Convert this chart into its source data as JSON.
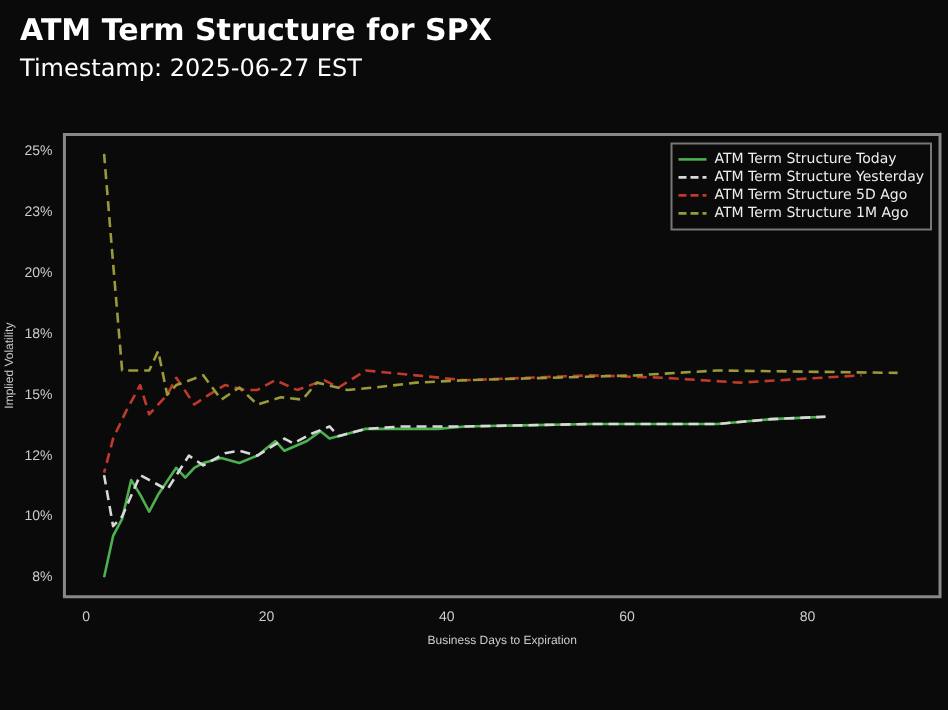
{
  "chart_data": {
    "type": "line",
    "title": "ATM Term Structure for SPX",
    "subtitle": "Timestamp: 2025-06-27 EST",
    "xlabel": "Business Days to Expiration",
    "ylabel": "Implied Volatility",
    "xlim": [
      -2.4,
      94.7
    ],
    "xticks": [
      0,
      20,
      40,
      60,
      80
    ],
    "ylim": [
      6.7,
      25.7
    ],
    "yticks": [
      {
        "value": 7.5,
        "label": "8%"
      },
      {
        "value": 10,
        "label": "10%"
      },
      {
        "value": 12.5,
        "label": "12%"
      },
      {
        "value": 15,
        "label": "15%"
      },
      {
        "value": 17.5,
        "label": "18%"
      },
      {
        "value": 20,
        "label": "20%"
      },
      {
        "value": 22.5,
        "label": "23%"
      },
      {
        "value": 25,
        "label": "25%"
      }
    ],
    "grid": false,
    "legend": "top right",
    "marker": "none",
    "series": [
      {
        "name": "ATM Term Structure Today",
        "color": "#4caf50",
        "line_style": "solid",
        "x": [
          2,
          3,
          4,
          5,
          6,
          7,
          8,
          10,
          11,
          12,
          13,
          15,
          17,
          19,
          21,
          22,
          24.5,
          26,
          27,
          29,
          31,
          35,
          39,
          42,
          56,
          70,
          76,
          82
        ],
        "values": [
          7.5,
          9.2,
          9.9,
          11.5,
          10.9,
          10.2,
          10.9,
          12,
          11.6,
          12,
          12.2,
          12.4,
          12.2,
          12.5,
          13.1,
          12.7,
          13.1,
          13.5,
          13.2,
          13.4,
          13.6,
          13.6,
          13.6,
          13.7,
          13.8,
          13.8,
          14,
          14.1
        ]
      },
      {
        "name": "ATM Term Structure Yesterday",
        "color": "#d8d8d8",
        "line_style": "dashed",
        "x": [
          2,
          3,
          4,
          6,
          9,
          11.4,
          13,
          15.4,
          17,
          19,
          22,
          23,
          25,
          27,
          28,
          31,
          35,
          42,
          56,
          70,
          76,
          82
        ],
        "values": [
          11.7,
          9.6,
          10,
          11.7,
          11.1,
          12.5,
          12.1,
          12.6,
          12.7,
          12.5,
          13.2,
          13,
          13.4,
          13.7,
          13.3,
          13.6,
          13.7,
          13.7,
          13.8,
          13.8,
          14,
          14.1
        ]
      },
      {
        "name": "ATM Term Structure 5D Ago",
        "color": "#c0392b",
        "line_style": "dashed",
        "x": [
          2,
          3,
          4.4,
          6,
          7,
          9,
          10,
          12,
          13.6,
          15.4,
          17.6,
          19,
          21,
          23.4,
          26.4,
          28,
          31,
          36.6,
          42,
          56,
          64,
          72.5,
          86
        ],
        "values": [
          11.8,
          13.2,
          14.3,
          15.4,
          14.2,
          15,
          15.7,
          14.6,
          15,
          15.4,
          15.2,
          15.2,
          15.6,
          15.2,
          15.6,
          15.3,
          16,
          15.8,
          15.6,
          15.8,
          15.7,
          15.5,
          15.8
        ]
      },
      {
        "name": "ATM Term Structure 1M Ago",
        "color": "#9a9a3a",
        "line_style": "dashed",
        "x": [
          2,
          3,
          4,
          7,
          8,
          9,
          10,
          13,
          15,
          17,
          19,
          21.6,
          24,
          25.6,
          29,
          32,
          36.6,
          42,
          61,
          70,
          90
        ],
        "values": [
          24.9,
          20.4,
          16,
          16,
          16.8,
          15,
          15.4,
          15.8,
          14.8,
          15.3,
          14.6,
          14.9,
          14.8,
          15.5,
          15.2,
          15.3,
          15.5,
          15.6,
          15.8,
          16,
          15.9
        ]
      }
    ]
  }
}
